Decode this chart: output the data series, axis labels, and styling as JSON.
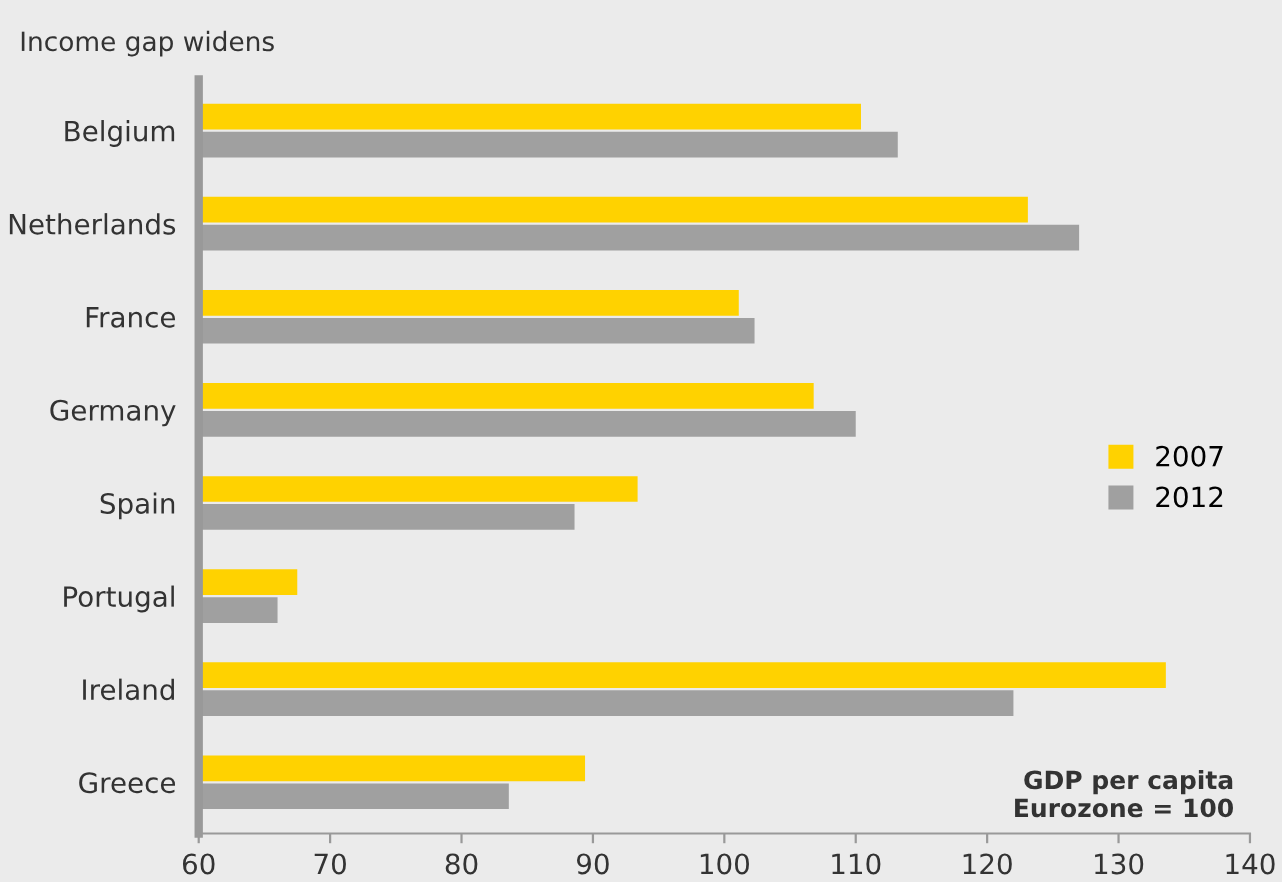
{
  "chart_data": {
    "type": "bar",
    "orientation": "horizontal",
    "title": "Income gap widens",
    "categories": [
      "Belgium",
      "Netherlands",
      "France",
      "Germany",
      "Spain",
      "Portugal",
      "Ireland",
      "Greece"
    ],
    "series": [
      {
        "name": "2007",
        "color": "#ffd200",
        "values": [
          110.4,
          123.1,
          101.1,
          106.8,
          93.4,
          67.5,
          133.6,
          89.4
        ]
      },
      {
        "name": "2012",
        "color": "#a0a0a0",
        "values": [
          113.2,
          127.0,
          102.3,
          110.0,
          88.6,
          66.0,
          122.0,
          83.6
        ]
      }
    ],
    "xlim": [
      60,
      140
    ],
    "xticks": [
      60,
      70,
      80,
      90,
      100,
      110,
      120,
      130,
      140
    ],
    "annotations": [
      "GDP per capita\nEurozone = 100"
    ],
    "legend": "right",
    "grid": false
  }
}
